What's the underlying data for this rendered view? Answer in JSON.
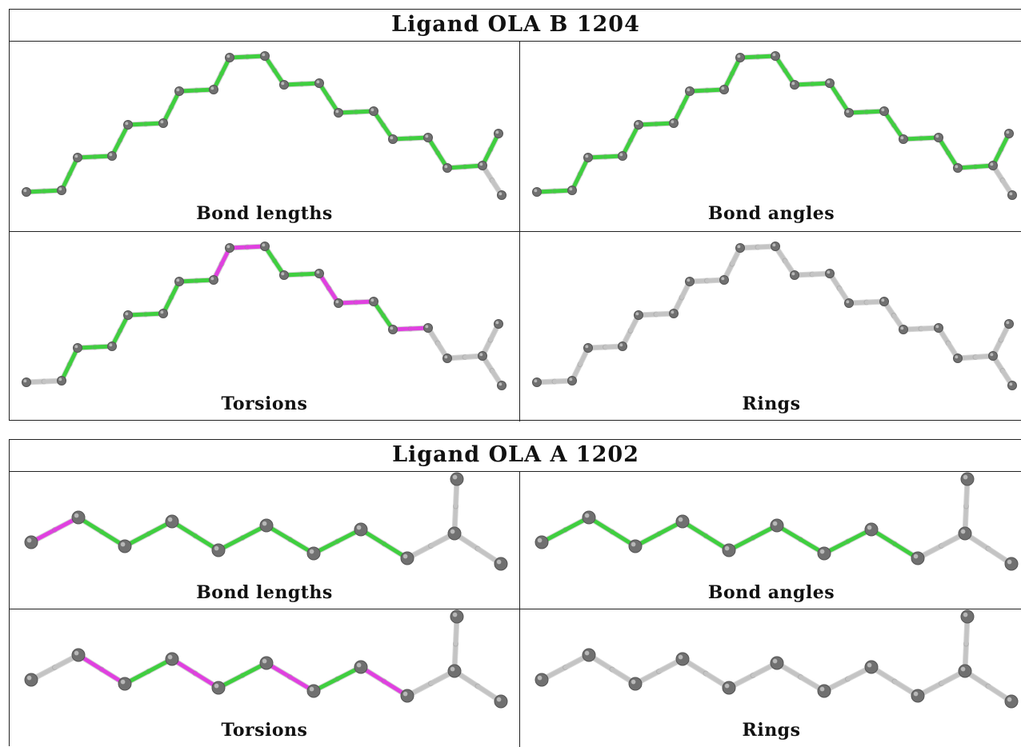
{
  "colors": {
    "ok_bond": "#3fcf3f",
    "outlier_bond": "#e040e0",
    "neutral_bond": "#c4c4c4",
    "atom": "#707070"
  },
  "panels": [
    {
      "title": "Ligand OLA B 1204",
      "cells": [
        {
          "caption": "Bond lengths",
          "bonds": [
            "g",
            "g",
            "g",
            "g",
            "g",
            "g",
            "g",
            "g",
            "g",
            "g",
            "g",
            "g",
            "g",
            "g",
            "g",
            "g",
            "g",
            "g",
            "g",
            "g",
            "m",
            "g",
            "g",
            "g",
            "g",
            "g",
            "g",
            "g",
            "g",
            "g",
            "g",
            "n",
            "n",
            "n"
          ]
        },
        {
          "caption": "Bond angles",
          "bonds": [
            "g",
            "g",
            "g",
            "g",
            "g",
            "g",
            "g",
            "g",
            "g",
            "g",
            "g",
            "g",
            "g",
            "g",
            "g",
            "g",
            "g",
            "g",
            "g",
            "g",
            "g",
            "g",
            "g",
            "g",
            "g",
            "g",
            "g",
            "g",
            "g",
            "g",
            "g",
            "n",
            "n",
            "n"
          ]
        },
        {
          "caption": "Torsions",
          "bonds": [
            "n",
            "g",
            "g",
            "g",
            "g",
            "g",
            "g",
            "g",
            "g",
            "g",
            "g",
            "m",
            "m",
            "m",
            "m",
            "m",
            "g",
            "g",
            "m",
            "m",
            "m",
            "m",
            "g",
            "g",
            "m",
            "m",
            "n",
            "n",
            "n",
            "n",
            "n",
            "n",
            "n",
            "n"
          ]
        },
        {
          "caption": "Rings",
          "bonds": [
            "n",
            "n",
            "n",
            "n",
            "n",
            "n",
            "n",
            "n",
            "n",
            "n",
            "n",
            "n",
            "n",
            "n",
            "n",
            "n",
            "n",
            "n",
            "n",
            "n",
            "n",
            "n",
            "n",
            "n",
            "n",
            "n",
            "n",
            "n",
            "n",
            "n",
            "n",
            "n",
            "n",
            "n"
          ]
        }
      ]
    },
    {
      "title": "Ligand OLA A 1202",
      "cells": [
        {
          "caption": "Bond lengths",
          "bonds": [
            "m",
            "g",
            "g",
            "g",
            "g",
            "g",
            "g",
            "g",
            "n",
            "n",
            "n"
          ]
        },
        {
          "caption": "Bond angles",
          "bonds": [
            "g",
            "g",
            "g",
            "g",
            "g",
            "g",
            "g",
            "g",
            "n",
            "n",
            "n"
          ]
        },
        {
          "caption": "Torsions",
          "bonds": [
            "n",
            "m",
            "g",
            "m",
            "g",
            "m",
            "g",
            "m",
            "n",
            "n",
            "n"
          ]
        },
        {
          "caption": "Rings",
          "bonds": [
            "n",
            "n",
            "n",
            "n",
            "n",
            "n",
            "n",
            "n",
            "n",
            "n",
            "n"
          ]
        }
      ]
    }
  ]
}
